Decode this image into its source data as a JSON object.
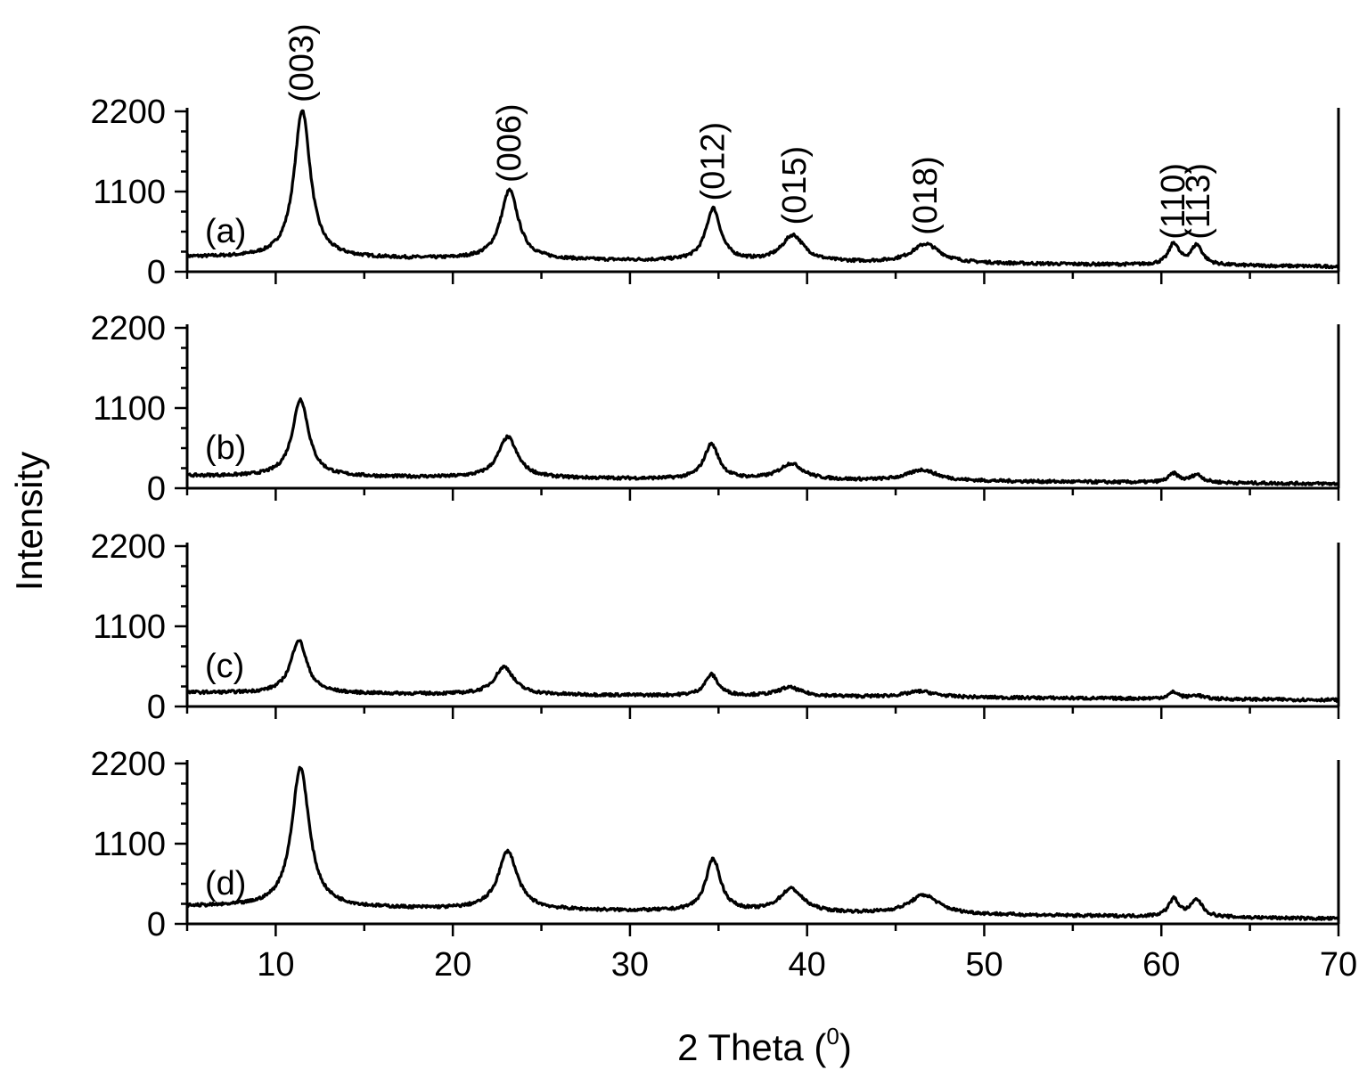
{
  "chart_data": {
    "type": "line",
    "xlabel": "2 Theta (",
    "xlabel_sup": "0",
    "xlabel_close": ")",
    "ylabel": "Intensity",
    "xlim": [
      5,
      70
    ],
    "x_ticks": [
      "10",
      "20",
      "30",
      "40",
      "50",
      "60",
      "70"
    ],
    "x_tick_values": [
      10,
      20,
      30,
      40,
      50,
      60,
      70
    ],
    "ylim": [
      0,
      2200
    ],
    "y_ticks": [
      "0",
      "1100",
      "2200"
    ],
    "y_tick_values": [
      0,
      1100,
      2200
    ],
    "grid": false,
    "peak_labels": [
      {
        "text": "(003)",
        "x": 11.5,
        "y": 2200
      },
      {
        "text": "(006)",
        "x": 23.2,
        "y": 1100
      },
      {
        "text": "(012)",
        "x": 34.7,
        "y": 850
      },
      {
        "text": "(015)",
        "x": 39.3,
        "y": 520
      },
      {
        "text": "(018)",
        "x": 46.7,
        "y": 380
      },
      {
        "text": "(110)",
        "x": 60.7,
        "y": 320
      },
      {
        "text": "(113)",
        "x": 62.1,
        "y": 320
      }
    ],
    "series": [
      {
        "label": "(a)",
        "baseline": {
          "start": 200,
          "end": 70
        },
        "peaks": [
          {
            "x": 11.5,
            "height": 2030,
            "width": 0.55
          },
          {
            "x": 23.2,
            "height": 950,
            "width": 0.6
          },
          {
            "x": 34.7,
            "height": 720,
            "width": 0.5
          },
          {
            "x": 39.2,
            "height": 360,
            "width": 0.75
          },
          {
            "x": 46.7,
            "height": 260,
            "width": 0.95
          },
          {
            "x": 60.7,
            "height": 290,
            "width": 0.35
          },
          {
            "x": 62.0,
            "height": 270,
            "width": 0.4
          }
        ]
      },
      {
        "label": "(b)",
        "baseline": {
          "start": 170,
          "end": 60
        },
        "peaks": [
          {
            "x": 11.4,
            "height": 1060,
            "width": 0.55
          },
          {
            "x": 23.1,
            "height": 560,
            "width": 0.65
          },
          {
            "x": 34.6,
            "height": 480,
            "width": 0.5
          },
          {
            "x": 39.1,
            "height": 220,
            "width": 0.8
          },
          {
            "x": 46.5,
            "height": 150,
            "width": 1.0
          },
          {
            "x": 60.7,
            "height": 120,
            "width": 0.35
          },
          {
            "x": 62.0,
            "height": 110,
            "width": 0.4
          }
        ]
      },
      {
        "label": "(c)",
        "baseline": {
          "start": 190,
          "end": 90
        },
        "peaks": [
          {
            "x": 11.3,
            "height": 730,
            "width": 0.55
          },
          {
            "x": 22.9,
            "height": 380,
            "width": 0.65
          },
          {
            "x": 34.6,
            "height": 290,
            "width": 0.45
          },
          {
            "x": 39.0,
            "height": 120,
            "width": 0.8
          },
          {
            "x": 46.4,
            "height": 80,
            "width": 1.0
          },
          {
            "x": 60.7,
            "height": 90,
            "width": 0.35
          },
          {
            "x": 62.0,
            "height": 50,
            "width": 0.4
          }
        ]
      },
      {
        "label": "(d)",
        "baseline": {
          "start": 240,
          "end": 70
        },
        "peaks": [
          {
            "x": 11.4,
            "height": 1920,
            "width": 0.6
          },
          {
            "x": 23.1,
            "height": 800,
            "width": 0.65
          },
          {
            "x": 34.7,
            "height": 720,
            "width": 0.5
          },
          {
            "x": 39.1,
            "height": 320,
            "width": 0.8
          },
          {
            "x": 46.6,
            "height": 260,
            "width": 1.0
          },
          {
            "x": 60.7,
            "height": 240,
            "width": 0.35
          },
          {
            "x": 62.0,
            "height": 230,
            "width": 0.4
          }
        ]
      }
    ]
  }
}
